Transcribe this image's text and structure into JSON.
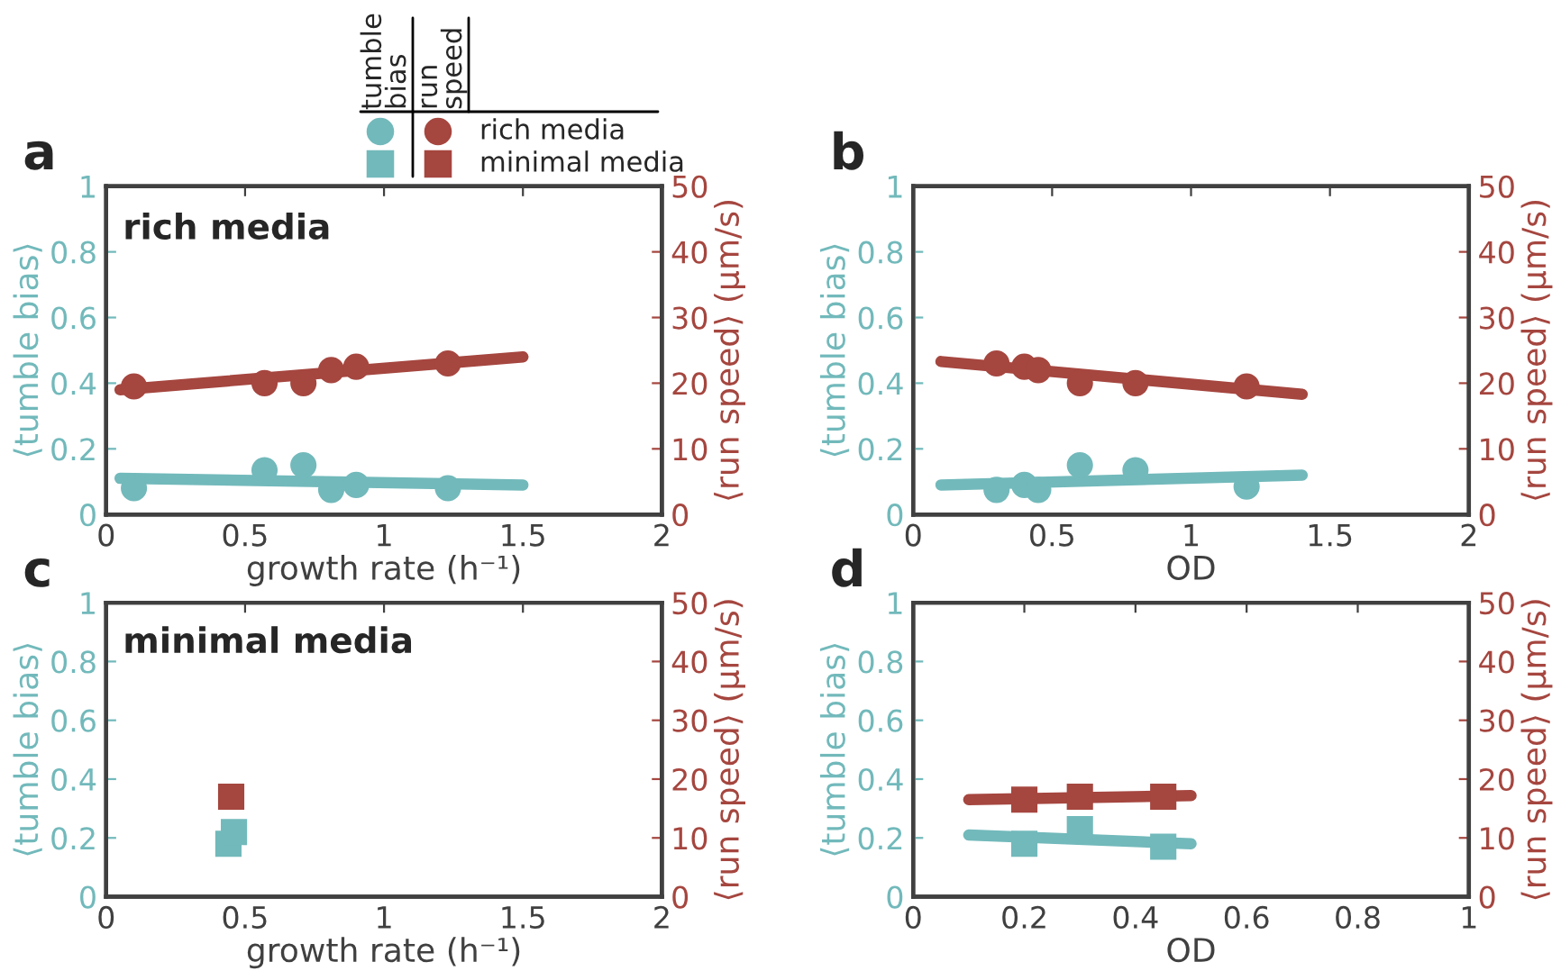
{
  "chart_data": [
    {
      "type": "scatter",
      "annotations": [
        "a",
        "rich media",
        "tumble\nbias",
        "run\nspeed",
        "rich media",
        "minimal media"
      ],
      "xlabel": "growth rate (h⁻¹)",
      "ylabel": "⟨tumble bias⟩",
      "y2label": "⟨run speed⟩ (μm/s)",
      "xlim": [
        0,
        2
      ],
      "xticks": [
        0,
        0.5,
        1,
        1.5,
        2
      ],
      "ylim": [
        0,
        1
      ],
      "yticks": [
        0,
        0.2,
        0.4,
        0.6,
        0.8,
        1
      ],
      "y2lim": [
        0,
        50
      ],
      "y2ticks": [
        0,
        10,
        20,
        30,
        40,
        50
      ],
      "marker": "circle",
      "series": [
        {
          "type": "line",
          "marker": "none",
          "color": "#72b9bb",
          "x": [
            0.05,
            1.5
          ],
          "values": [
            0.11,
            0.09
          ]
        },
        {
          "type": "line",
          "marker": "none",
          "color": "#a5463f",
          "axis": "y2",
          "x": [
            0.05,
            1.5
          ],
          "values": [
            19,
            24
          ]
        },
        {
          "color": "#72b9bb",
          "x": [
            0.1,
            0.57,
            0.71,
            0.81,
            0.9,
            1.23
          ],
          "values": [
            0.08,
            0.135,
            0.15,
            0.075,
            0.09,
            0.08
          ]
        },
        {
          "color": "#a5463f",
          "axis": "y2",
          "x": [
            0.1,
            0.57,
            0.71,
            0.81,
            0.9,
            1.23
          ],
          "values": [
            19.5,
            20,
            20,
            22,
            22.5,
            23
          ]
        }
      ]
    },
    {
      "type": "scatter",
      "annotations": [
        "b"
      ],
      "xlabel": "OD",
      "ylabel": "⟨tumble bias⟩",
      "y2label": "⟨run speed⟩ (μm/s)",
      "xlim": [
        0,
        2
      ],
      "xticks": [
        0,
        0.5,
        1,
        1.5,
        2
      ],
      "ylim": [
        0,
        1
      ],
      "yticks": [
        0,
        0.2,
        0.4,
        0.6,
        0.8,
        1
      ],
      "y2lim": [
        0,
        50
      ],
      "y2ticks": [
        0,
        10,
        20,
        30,
        40,
        50
      ],
      "marker": "circle",
      "series": [
        {
          "type": "line",
          "marker": "none",
          "color": "#72b9bb",
          "x": [
            0.1,
            1.4
          ],
          "values": [
            0.09,
            0.12
          ]
        },
        {
          "type": "line",
          "marker": "none",
          "color": "#a5463f",
          "axis": "y2",
          "x": [
            0.1,
            1.4
          ],
          "values": [
            23.3,
            18.3
          ]
        },
        {
          "color": "#72b9bb",
          "x": [
            0.3,
            0.4,
            0.45,
            0.6,
            0.8,
            1.2
          ],
          "values": [
            0.075,
            0.09,
            0.075,
            0.15,
            0.135,
            0.085
          ]
        },
        {
          "color": "#a5463f",
          "axis": "y2",
          "x": [
            0.3,
            0.4,
            0.45,
            0.6,
            0.8,
            1.2
          ],
          "values": [
            23,
            22.5,
            22,
            20,
            20,
            19.5
          ]
        }
      ]
    },
    {
      "type": "scatter",
      "annotations": [
        "c",
        "minimal media"
      ],
      "xlabel": "growth rate (h⁻¹)",
      "ylabel": "⟨tumble bias⟩",
      "y2label": "⟨run speed⟩ (μm/s)",
      "xlim": [
        0,
        2
      ],
      "xticks": [
        0,
        0.5,
        1,
        1.5,
        2
      ],
      "ylim": [
        0,
        1
      ],
      "yticks": [
        0,
        0.2,
        0.4,
        0.6,
        0.8,
        1
      ],
      "y2lim": [
        0,
        50
      ],
      "y2ticks": [
        0,
        10,
        20,
        30,
        40,
        50
      ],
      "marker": "square",
      "series": [
        {
          "color": "#72b9bb",
          "x": [
            0.44,
            0.46
          ],
          "values": [
            0.18,
            0.22
          ]
        },
        {
          "color": "#a5463f",
          "axis": "y2",
          "x": [
            0.45
          ],
          "values": [
            17
          ]
        }
      ]
    },
    {
      "type": "scatter",
      "annotations": [
        "d"
      ],
      "xlabel": "OD",
      "ylabel": "⟨tumble bias⟩",
      "y2label": "⟨run speed⟩ (μm/s)",
      "xlim": [
        0,
        1
      ],
      "xticks": [
        0,
        0.2,
        0.4,
        0.6,
        0.8,
        1
      ],
      "ylim": [
        0,
        1
      ],
      "yticks": [
        0,
        0.2,
        0.4,
        0.6,
        0.8,
        1
      ],
      "y2lim": [
        0,
        50
      ],
      "y2ticks": [
        0,
        10,
        20,
        30,
        40,
        50
      ],
      "marker": "square",
      "series": [
        {
          "type": "line",
          "marker": "none",
          "color": "#72b9bb",
          "x": [
            0.1,
            0.5
          ],
          "values": [
            0.21,
            0.18
          ]
        },
        {
          "type": "line",
          "marker": "none",
          "color": "#a5463f",
          "axis": "y2",
          "x": [
            0.1,
            0.5
          ],
          "values": [
            16.5,
            17.2
          ]
        },
        {
          "color": "#72b9bb",
          "x": [
            0.2,
            0.3,
            0.45
          ],
          "values": [
            0.18,
            0.23,
            0.17
          ]
        },
        {
          "color": "#a5463f",
          "axis": "y2",
          "x": [
            0.2,
            0.3,
            0.45
          ],
          "values": [
            16.5,
            17,
            17
          ]
        }
      ]
    }
  ]
}
